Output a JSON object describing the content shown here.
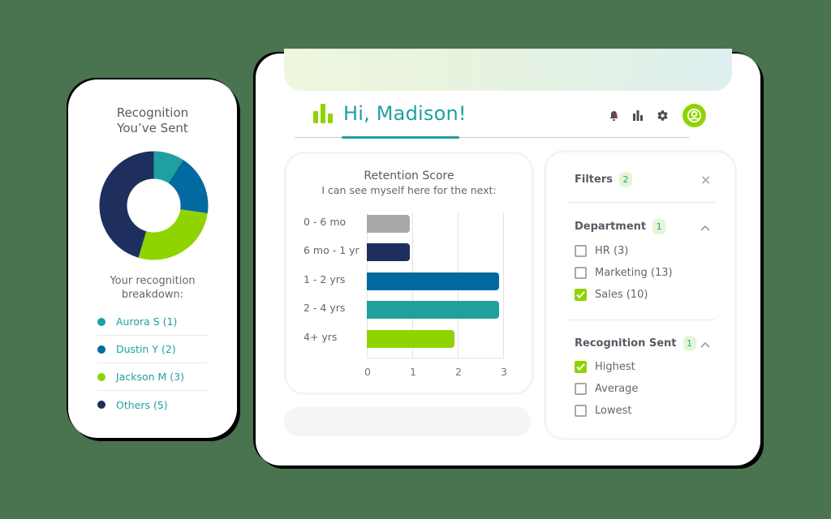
{
  "colors": {
    "teal": "#1fa0a0",
    "blue": "#026aa0",
    "navy": "#1e2f5e",
    "lime": "#8fd400",
    "gray": "#a8a9ab",
    "background": "#4a7350"
  },
  "recognition_card": {
    "title_line1": "Recognition",
    "title_line2": "You’ve Sent",
    "breakdown_line1": "Your recognition",
    "breakdown_line2": "breakdown:",
    "legend": [
      {
        "label": "Aurora S (1)",
        "name": "Aurora S",
        "count": 1,
        "color": "#1fa0a0"
      },
      {
        "label": "Dustin Y (2)",
        "name": "Dustin Y",
        "count": 2,
        "color": "#026aa0"
      },
      {
        "label": "Jackson M (3)",
        "name": "Jackson M",
        "count": 3,
        "color": "#8fd400"
      },
      {
        "label": "Others (5)",
        "name": "Others",
        "count": 5,
        "color": "#1e2f5e"
      }
    ]
  },
  "header": {
    "greeting": "Hi, Madison!",
    "icons": [
      "bell-icon",
      "bar-chart-icon",
      "gear-icon",
      "user-avatar-icon"
    ]
  },
  "retention": {
    "title": "Retention Score",
    "subtitle": "I can see myself here for the next:"
  },
  "chart_data": [
    {
      "type": "pie",
      "title": "Recognition You’ve Sent",
      "categories": [
        "Aurora S",
        "Dustin Y",
        "Jackson M",
        "Others"
      ],
      "values": [
        1,
        2,
        3,
        5
      ],
      "colors": [
        "#1fa0a0",
        "#026aa0",
        "#8fd400",
        "#1e2f5e"
      ],
      "donut": true
    },
    {
      "type": "bar",
      "orientation": "horizontal",
      "title": "Retention Score",
      "subtitle": "I can see myself here for the next:",
      "categories": [
        "0 - 6 mo",
        "6 mo - 1 yr",
        "1 - 2 yrs",
        "2 - 4 yrs",
        "4+ yrs"
      ],
      "values": [
        0.95,
        0.95,
        2.95,
        2.95,
        1.95
      ],
      "colors": [
        "#a8a9ab",
        "#1e2f5e",
        "#026aa0",
        "#20a09c",
        "#8fd400"
      ],
      "xticks": [
        "0",
        "1",
        "2",
        "3"
      ],
      "xlim": [
        0,
        3
      ],
      "grid": true
    }
  ],
  "filters": {
    "title": "Filters",
    "count": "2",
    "close": "×",
    "sections": [
      {
        "title": "Department",
        "count": "1",
        "options": [
          {
            "label": "HR (3)",
            "checked": false
          },
          {
            "label": "Marketing (13)",
            "checked": false
          },
          {
            "label": "Sales (10)",
            "checked": true
          }
        ]
      },
      {
        "title": "Recognition Sent",
        "count": "1",
        "options": [
          {
            "label": "Highest",
            "checked": true
          },
          {
            "label": "Average",
            "checked": false
          },
          {
            "label": "Lowest",
            "checked": false
          }
        ]
      }
    ]
  }
}
